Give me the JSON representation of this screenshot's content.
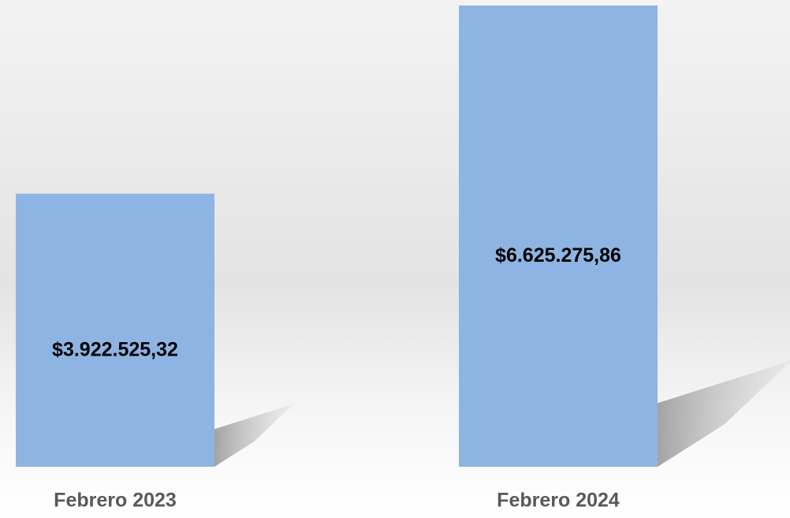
{
  "chart_data": {
    "type": "bar",
    "categories": [
      "Febrero 2023",
      "Febrero 2024"
    ],
    "values": [
      3922525.32,
      6625275.86
    ],
    "value_labels": [
      "$3.922.525,32",
      "$6.625.275,86"
    ],
    "color": "#8eb4e3"
  }
}
